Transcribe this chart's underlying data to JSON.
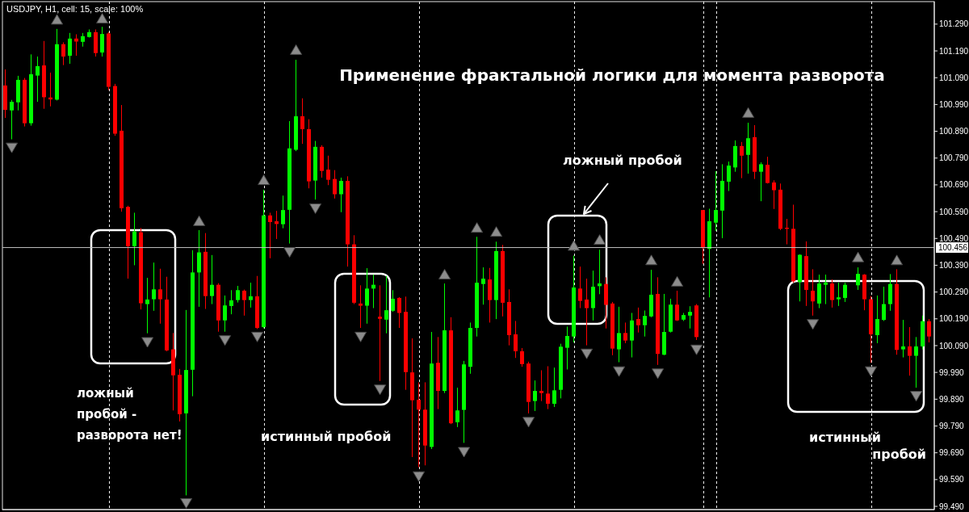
{
  "chart_data": {
    "type": "candlestick",
    "title": "Применение фрактальной логики для момента разворота",
    "subtitle": "USDJPY, H1, cell: 15, scale: 100%",
    "annotations": [
      "ложный пробой - разворота нет!",
      "истинный пробой",
      "ложный пробой",
      "истинный пробой"
    ],
    "categories": [
      null,
      null,
      null,
      null,
      null,
      null,
      null,
      null,
      null,
      null,
      null,
      null,
      null,
      null,
      null,
      null,
      null,
      null,
      null,
      null,
      null,
      null,
      null,
      null,
      null,
      null,
      null,
      null,
      null,
      null,
      null,
      null,
      null,
      null,
      null,
      null,
      null,
      null,
      null,
      null,
      null,
      null,
      null,
      null,
      null,
      null,
      null,
      null,
      null,
      null,
      null,
      null,
      null,
      null,
      null,
      null,
      null,
      null,
      null,
      null,
      null,
      null,
      null,
      null,
      null,
      null,
      null,
      null,
      null,
      null,
      null,
      null,
      null,
      null,
      null,
      null,
      null,
      null,
      null,
      null,
      null,
      null,
      null,
      null,
      null,
      null,
      null,
      null,
      null,
      null,
      null,
      null,
      null,
      null,
      null,
      null,
      null,
      null,
      null,
      null,
      null,
      null,
      null,
      null,
      null,
      null,
      null,
      null,
      null,
      null,
      null,
      null,
      null,
      null,
      null,
      null,
      null,
      null,
      null,
      null,
      null,
      null,
      null,
      null,
      null,
      null,
      null,
      null,
      null,
      null,
      null,
      null,
      null,
      null,
      null,
      null,
      null,
      null,
      null,
      null,
      null,
      null,
      null,
      null
    ],
    "ohlc": [
      [
        101.061,
        101.121,
        100.94,
        100.97
      ],
      [
        100.968,
        101.007,
        100.86,
        101.0
      ],
      [
        100.998,
        101.097,
        100.968,
        101.082
      ],
      [
        101.082,
        101.089,
        100.908,
        100.92
      ],
      [
        100.92,
        101.177,
        100.911,
        101.103
      ],
      [
        101.098,
        101.169,
        101.0,
        101.133
      ],
      [
        101.136,
        101.227,
        100.974,
        101.017
      ],
      [
        101.016,
        101.109,
        100.983,
        101.009
      ],
      [
        101.008,
        101.272,
        101.005,
        101.215
      ],
      [
        101.215,
        101.222,
        101.137,
        101.169
      ],
      [
        101.172,
        101.257,
        101.142,
        101.236
      ],
      [
        101.236,
        101.252,
        101.172,
        101.225
      ],
      [
        101.224,
        101.257,
        101.206,
        101.245
      ],
      [
        101.242,
        101.27,
        101.24,
        101.26
      ],
      [
        101.26,
        101.27,
        101.169,
        101.182
      ],
      [
        101.184,
        101.28,
        101.169,
        101.253
      ],
      [
        101.255,
        101.26,
        101.044,
        101.056
      ],
      [
        101.059,
        101.067,
        100.873,
        100.881
      ],
      [
        100.892,
        100.988,
        100.59,
        100.603
      ],
      [
        100.608,
        100.612,
        100.34,
        100.461
      ],
      [
        100.461,
        100.586,
        100.39,
        100.516
      ],
      [
        100.513,
        100.529,
        100.225,
        100.248
      ],
      [
        100.245,
        100.343,
        100.136,
        100.262
      ],
      [
        100.263,
        100.4,
        100.22,
        100.3
      ],
      [
        100.3,
        100.377,
        100.172,
        100.263
      ],
      [
        100.262,
        100.347,
        100.069,
        100.072
      ],
      [
        100.076,
        100.137,
        99.848,
        99.979
      ],
      [
        99.981,
        100.003,
        99.807,
        99.834
      ],
      [
        99.837,
        100.223,
        99.531,
        99.999
      ],
      [
        100.0,
        100.446,
        99.901,
        100.363
      ],
      [
        100.363,
        100.521,
        100.235,
        100.438
      ],
      [
        100.44,
        100.51,
        100.227,
        100.275
      ],
      [
        100.275,
        100.428,
        100.245,
        100.317
      ],
      [
        100.317,
        100.323,
        100.142,
        100.184
      ],
      [
        100.184,
        100.277,
        100.142,
        100.24
      ],
      [
        100.238,
        100.297,
        100.207,
        100.259
      ],
      [
        100.26,
        100.313,
        100.251,
        100.297
      ],
      [
        100.295,
        100.299,
        100.202,
        100.26
      ],
      [
        100.26,
        100.325,
        100.232,
        100.274
      ],
      [
        100.274,
        100.35,
        100.152,
        100.156
      ],
      [
        100.159,
        100.672,
        100.155,
        100.576
      ],
      [
        100.576,
        100.586,
        100.416,
        100.551
      ],
      [
        100.554,
        100.593,
        100.488,
        100.544
      ],
      [
        100.543,
        100.65,
        100.528,
        100.596
      ],
      [
        100.597,
        100.928,
        100.471,
        100.826
      ],
      [
        100.821,
        101.157,
        100.816,
        100.946
      ],
      [
        100.946,
        101.013,
        100.843,
        100.898
      ],
      [
        100.898,
        100.935,
        100.677,
        100.703
      ],
      [
        100.706,
        100.854,
        100.635,
        100.832
      ],
      [
        100.832,
        100.838,
        100.717,
        100.742
      ],
      [
        100.747,
        100.799,
        100.689,
        100.709
      ],
      [
        100.712,
        100.745,
        100.639,
        100.655
      ],
      [
        100.655,
        100.717,
        100.588,
        100.705
      ],
      [
        100.705,
        100.722,
        100.385,
        100.468
      ],
      [
        100.468,
        100.502,
        100.245,
        100.25
      ],
      [
        100.247,
        100.315,
        100.156,
        100.239
      ],
      [
        100.239,
        100.379,
        100.172,
        100.303
      ],
      [
        100.303,
        100.355,
        100.23,
        100.317
      ],
      [
        100.198,
        100.315,
        99.958,
        100.19
      ],
      [
        100.187,
        100.35,
        100.136,
        100.222
      ],
      [
        100.22,
        100.297,
        100.216,
        100.265
      ],
      [
        100.268,
        100.271,
        100.156,
        100.212
      ],
      [
        100.216,
        100.273,
        99.925,
        99.991
      ],
      [
        99.99,
        100.117,
        99.674,
        99.886
      ],
      [
        99.888,
        99.953,
        99.636,
        99.851
      ],
      [
        99.851,
        99.953,
        99.643,
        99.717
      ],
      [
        99.712,
        100.141,
        99.704,
        100.023
      ],
      [
        100.026,
        100.122,
        99.853,
        99.921
      ],
      [
        99.921,
        100.322,
        99.913,
        100.147
      ],
      [
        100.147,
        100.196,
        99.797,
        99.8
      ],
      [
        99.804,
        99.933,
        99.786,
        99.848
      ],
      [
        99.85,
        100.033,
        99.727,
        100.02
      ],
      [
        100.011,
        100.176,
        99.985,
        100.156
      ],
      [
        100.156,
        100.496,
        100.124,
        100.325
      ],
      [
        100.32,
        100.382,
        100.243,
        100.34
      ],
      [
        100.337,
        100.38,
        100.176,
        100.26
      ],
      [
        100.26,
        100.478,
        100.189,
        100.443
      ],
      [
        100.443,
        100.466,
        100.199,
        100.25
      ],
      [
        100.253,
        100.3,
        100.091,
        100.129
      ],
      [
        100.132,
        100.182,
        100.044,
        100.069
      ],
      [
        100.069,
        100.081,
        100.011,
        100.021
      ],
      [
        100.023,
        100.03,
        99.837,
        99.88
      ],
      [
        99.883,
        99.96,
        99.846,
        99.921
      ],
      [
        99.921,
        99.998,
        99.883,
        99.913
      ],
      [
        99.911,
        100.013,
        99.853,
        99.873
      ],
      [
        99.873,
        100.008,
        99.861,
        99.923
      ],
      [
        99.925,
        100.097,
        99.893,
        100.086
      ],
      [
        100.082,
        100.161,
        100.001,
        100.126
      ],
      [
        100.124,
        100.426,
        100.102,
        100.307
      ],
      [
        100.303,
        100.385,
        100.23,
        100.257
      ],
      [
        100.262,
        100.34,
        100.091,
        100.23
      ],
      [
        100.23,
        100.37,
        100.184,
        100.31
      ],
      [
        100.312,
        100.448,
        100.282,
        100.322
      ],
      [
        100.32,
        100.345,
        100.154,
        100.242
      ],
      [
        100.247,
        100.253,
        100.054,
        100.079
      ],
      [
        100.076,
        100.235,
        100.028,
        100.137
      ],
      [
        100.137,
        100.176,
        100.099,
        100.109
      ],
      [
        100.109,
        100.212,
        100.046,
        100.184
      ],
      [
        100.189,
        100.232,
        100.139,
        100.166
      ],
      [
        100.166,
        100.221,
        100.124,
        100.201
      ],
      [
        100.199,
        100.373,
        100.196,
        100.28
      ],
      [
        100.283,
        100.345,
        100.018,
        100.059
      ],
      [
        100.056,
        100.283,
        100.054,
        100.141
      ],
      [
        100.142,
        100.265,
        100.139,
        100.243
      ],
      [
        100.243,
        100.295,
        100.182,
        100.184
      ],
      [
        100.187,
        100.212,
        100.182,
        100.204
      ],
      [
        100.202,
        100.237,
        100.154,
        100.216
      ],
      [
        100.24,
        100.245,
        100.111,
        100.122
      ],
      [
        100.596,
        100.596,
        100.395,
        100.454
      ],
      [
        100.451,
        100.601,
        100.27,
        100.554
      ],
      [
        100.549,
        100.741,
        100.518,
        100.596
      ],
      [
        100.594,
        100.767,
        100.491,
        100.705
      ],
      [
        100.702,
        100.777,
        100.667,
        100.762
      ],
      [
        100.755,
        100.856,
        100.739,
        100.835
      ],
      [
        100.835,
        100.85,
        100.715,
        100.799
      ],
      [
        100.802,
        100.922,
        100.732,
        100.864
      ],
      [
        100.868,
        100.913,
        100.712,
        100.739
      ],
      [
        100.739,
        100.774,
        100.629,
        100.767
      ],
      [
        100.765,
        100.795,
        100.695,
        100.697
      ],
      [
        100.699,
        100.707,
        100.6,
        100.67
      ],
      [
        100.672,
        100.695,
        100.521,
        100.526
      ],
      [
        100.53,
        100.563,
        100.468,
        100.526
      ],
      [
        100.526,
        100.616,
        100.325,
        100.33
      ],
      [
        100.327,
        100.431,
        100.255,
        100.429
      ],
      [
        100.424,
        100.479,
        100.238,
        100.298
      ],
      [
        100.295,
        100.375,
        100.202,
        100.255
      ],
      [
        100.247,
        100.355,
        100.23,
        100.322
      ],
      [
        100.317,
        100.355,
        100.245,
        100.325
      ],
      [
        100.322,
        100.337,
        100.232,
        100.26
      ],
      [
        100.263,
        100.325,
        100.238,
        100.27
      ],
      [
        100.268,
        100.325,
        100.253,
        100.317
      ],
      null,
      [
        100.315,
        100.382,
        100.298,
        100.358
      ],
      [
        100.355,
        100.357,
        100.222,
        100.263
      ],
      [
        100.263,
        100.275,
        100.026,
        100.132
      ],
      [
        100.129,
        100.277,
        100.099,
        100.189
      ],
      [
        100.186,
        100.31,
        100.182,
        100.245
      ],
      [
        100.245,
        100.357,
        100.22,
        100.32
      ],
      [
        100.32,
        100.375,
        100.056,
        100.074
      ],
      [
        100.076,
        100.186,
        100.046,
        100.087
      ],
      [
        100.087,
        100.159,
        99.978,
        100.052
      ],
      [
        100.052,
        100.122,
        99.933,
        100.087
      ],
      [
        100.087,
        100.202,
        100.076,
        100.181
      ],
      [
        100.181,
        100.189,
        100.102,
        100.124
      ]
    ],
    "colors": [
      "#ff0000",
      "#00ff00",
      "#00ff00",
      "#ff0000",
      "#00ff00",
      "#00ff00",
      "#ff0000",
      "#ff0000",
      "#00ff00",
      "#ff0000",
      "#00ff00",
      "#ff0000",
      "#00ff00",
      "#00ff00",
      "#ff0000",
      "#00ff00",
      "#ff0000",
      "#ff0000",
      "#ff0000",
      "#ff0000",
      "#00ff00",
      "#ff0000",
      "#00ff00",
      "#00ff00",
      "#ff0000",
      "#ff0000",
      "#ff0000",
      "#ff0000",
      "#00ff00",
      "#00ff00",
      "#00ff00",
      "#ff0000",
      "#00ff00",
      "#ff0000",
      "#00ff00",
      "#00ff00",
      "#00ff00",
      "#ff0000",
      "#00ff00",
      "#ff0000",
      "#00ff00",
      "#ff0000",
      "#ff0000",
      "#00ff00",
      "#00ff00",
      "#00ff00",
      "#ff0000",
      "#ff0000",
      "#00ff00",
      "#ff0000",
      "#ff0000",
      "#ff0000",
      "#00ff00",
      "#ff0000",
      "#ff0000",
      "#ff0000",
      "#00ff00",
      "#00ff00",
      "#ff0000",
      "#00ff00",
      "#00ff00",
      "#ff0000",
      "#ff0000",
      "#ff0000",
      "#ff0000",
      "#ff0000",
      "#00ff00",
      "#ff0000",
      "#00ff00",
      "#ff0000",
      "#00ff00",
      "#00ff00",
      "#00ff00",
      "#00ff00",
      "#00ff00",
      "#ff0000",
      "#00ff00",
      "#ff0000",
      "#ff0000",
      "#ff0000",
      "#ff0000",
      "#ff0000",
      "#00ff00",
      "#ff0000",
      "#ff0000",
      "#00ff00",
      "#00ff00",
      "#00ff00",
      "#00ff00",
      "#ff0000",
      "#ff0000",
      "#00ff00",
      "#00ff00",
      "#ff0000",
      "#ff0000",
      "#00ff00",
      "#ff0000",
      "#00ff00",
      "#ff0000",
      "#00ff00",
      "#00ff00",
      "#ff0000",
      "#00ff00",
      "#00ff00",
      "#ff0000",
      "#00ff00",
      "#00ff00",
      "#ff0000",
      "#ff0000",
      "#00ff00",
      "#00ff00",
      "#00ff00",
      "#00ff00",
      "#00ff00",
      "#ff0000",
      "#00ff00",
      "#ff0000",
      "#00ff00",
      "#ff0000",
      "#ff0000",
      "#ff0000",
      "#ff0000",
      "#ff0000",
      "#00ff00",
      "#ff0000",
      "#ff0000",
      "#00ff00",
      "#00ff00",
      "#ff0000",
      "#00ff00",
      "#00ff00",
      null,
      "#00ff00",
      "#ff0000",
      "#ff0000",
      "#00ff00",
      "#00ff00",
      "#00ff00",
      "#ff0000",
      "#00ff00",
      "#ff0000",
      "#00ff00",
      "#00ff00",
      "#ff0000"
    ],
    "series": [
      {
        "type": "scatter",
        "color": "#8c8c8c",
        "values": [
          null,
          null,
          null,
          null,
          null,
          null,
          null,
          null,
          101.308,
          null,
          null,
          null,
          null,
          null,
          null,
          101.312,
          null,
          null,
          null,
          null,
          null,
          null,
          null,
          null,
          null,
          null,
          null,
          null,
          null,
          null,
          100.556,
          null,
          null,
          null,
          null,
          null,
          null,
          null,
          null,
          null,
          100.709,
          null,
          null,
          null,
          null,
          101.195,
          null,
          null,
          null,
          null,
          null,
          null,
          null,
          null,
          null,
          null,
          null,
          null,
          null,
          null,
          null,
          null,
          null,
          null,
          null,
          null,
          null,
          null,
          100.357,
          null,
          null,
          null,
          null,
          100.531,
          null,
          null,
          100.516,
          null,
          null,
          null,
          null,
          null,
          null,
          null,
          null,
          null,
          null,
          null,
          100.464,
          null,
          null,
          null,
          100.486,
          null,
          null,
          null,
          null,
          null,
          null,
          null,
          100.41,
          null,
          null,
          null,
          100.33,
          null,
          null,
          null,
          null,
          null,
          null,
          null,
          null,
          null,
          null,
          100.96,
          null,
          null,
          null,
          null,
          null,
          null,
          null,
          null,
          null,
          null,
          null,
          null,
          null,
          null,
          null,
          null,
          100.421,
          null,
          null,
          null,
          null,
          null,
          100.41,
          null,
          null,
          null,
          null,
          null
        ]
      },
      {
        "type": "scatter",
        "color": "#8c8c8c",
        "values": [
          null,
          100.828,
          null,
          null,
          null,
          null,
          null,
          null,
          null,
          null,
          null,
          null,
          null,
          null,
          null,
          null,
          null,
          null,
          null,
          null,
          null,
          null,
          100.102,
          null,
          null,
          null,
          null,
          null,
          99.501,
          null,
          null,
          null,
          null,
          null,
          100.109,
          null,
          null,
          null,
          null,
          100.122,
          null,
          null,
          null,
          null,
          100.438,
          null,
          null,
          null,
          100.601,
          null,
          null,
          null,
          null,
          null,
          null,
          100.122,
          null,
          null,
          99.925,
          null,
          null,
          null,
          null,
          null,
          99.601,
          null,
          null,
          null,
          null,
          null,
          null,
          99.692,
          null,
          null,
          null,
          null,
          null,
          null,
          null,
          null,
          null,
          99.804,
          null,
          null,
          null,
          null,
          null,
          null,
          null,
          null,
          100.059,
          null,
          null,
          null,
          null,
          99.993,
          null,
          null,
          null,
          null,
          null,
          99.985,
          null,
          null,
          null,
          null,
          null,
          100.074,
          null,
          null,
          null,
          null,
          null,
          null,
          null,
          null,
          null,
          null,
          null,
          null,
          null,
          null,
          null,
          null,
          null,
          100.169,
          null,
          null,
          null,
          null,
          null,
          null,
          null,
          null,
          99.993,
          null,
          null,
          null,
          null,
          null,
          null,
          99.901,
          null,
          null
        ]
      }
    ],
    "marker": "triangle",
    "ylim": [
      99.478,
      101.374
    ],
    "yticks": [
      {
        "value": 99.49,
        "label": "99.490"
      },
      {
        "value": 99.59,
        "label": "99.590"
      },
      {
        "value": 99.69,
        "label": "99.690"
      },
      {
        "value": 99.79,
        "label": "99.790"
      },
      {
        "value": 99.89,
        "label": "99.890"
      },
      {
        "value": 99.99,
        "label": "99.990"
      },
      {
        "value": 100.09,
        "label": "100.090"
      },
      {
        "value": 100.19,
        "label": "100.190"
      },
      {
        "value": 100.29,
        "label": "100.290"
      },
      {
        "value": 100.39,
        "label": "100.390"
      },
      {
        "value": 100.49,
        "label": "100.490"
      },
      {
        "value": 100.59,
        "label": "100.590"
      },
      {
        "value": 100.69,
        "label": "100.690"
      },
      {
        "value": 100.79,
        "label": "100.790"
      },
      {
        "value": 100.89,
        "label": "100.890"
      },
      {
        "value": 100.99,
        "label": "100.990"
      },
      {
        "value": 101.09,
        "label": "101.090"
      },
      {
        "value": 101.19,
        "label": "101.190"
      },
      {
        "value": 101.29,
        "label": "101.290"
      }
    ],
    "ref_lines": [
      {
        "axis": "y",
        "value": 100.456,
        "label": "100.456",
        "color": "#c0c0c0"
      }
    ],
    "tick_labels": "y"
  }
}
